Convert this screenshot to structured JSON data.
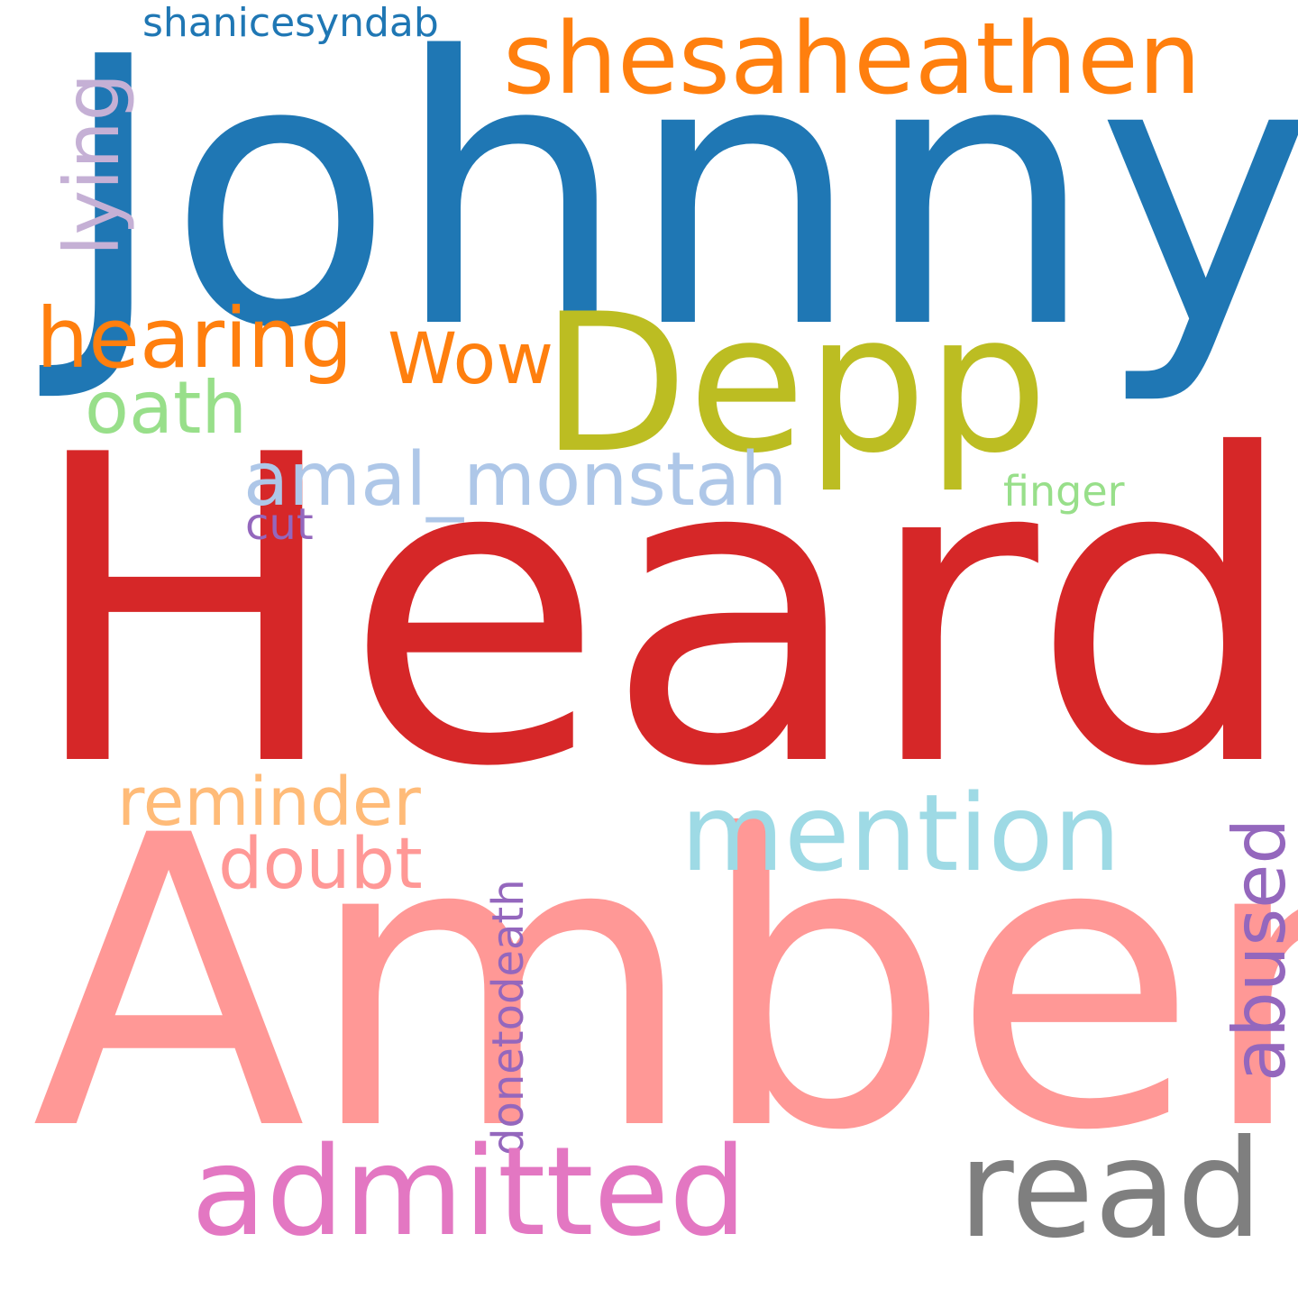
{
  "words": {
    "johnny": {
      "text": "Johnny",
      "color": "#1f77b4"
    },
    "heard": {
      "text": "Heard",
      "color": "#d62728"
    },
    "amber": {
      "text": "Amber",
      "color": "#ff9896"
    },
    "depp": {
      "text": "Depp",
      "color": "#bcbd22"
    },
    "shesaheathen": {
      "text": "shesaheathen",
      "color": "#ff7f0e"
    },
    "shanicesyndab": {
      "text": "shanicesyndab",
      "color": "#1f77b4"
    },
    "lying": {
      "text": "lying",
      "color": "#c5b0d5"
    },
    "hearing": {
      "text": "hearing",
      "color": "#ff7f0e"
    },
    "wow": {
      "text": "Wow",
      "color": "#ff7f0e"
    },
    "oath": {
      "text": "oath",
      "color": "#98df8a"
    },
    "amal_monstah": {
      "text": "amal_monstah",
      "color": "#aec7e8"
    },
    "finger": {
      "text": "finger",
      "color": "#98df8a"
    },
    "cut": {
      "text": "cut",
      "color": "#9467bd"
    },
    "reminder": {
      "text": "reminder",
      "color": "#ffbb78"
    },
    "mention": {
      "text": "mention",
      "color": "#9edae5"
    },
    "doubt": {
      "text": "doubt",
      "color": "#ff9896"
    },
    "abused": {
      "text": "abused",
      "color": "#9467bd"
    },
    "donetodeath": {
      "text": "donetodeath",
      "color": "#9467bd"
    },
    "admitted": {
      "text": "admitted",
      "color": "#e377c2"
    },
    "read": {
      "text": "read",
      "color": "#7f7f7f"
    }
  }
}
